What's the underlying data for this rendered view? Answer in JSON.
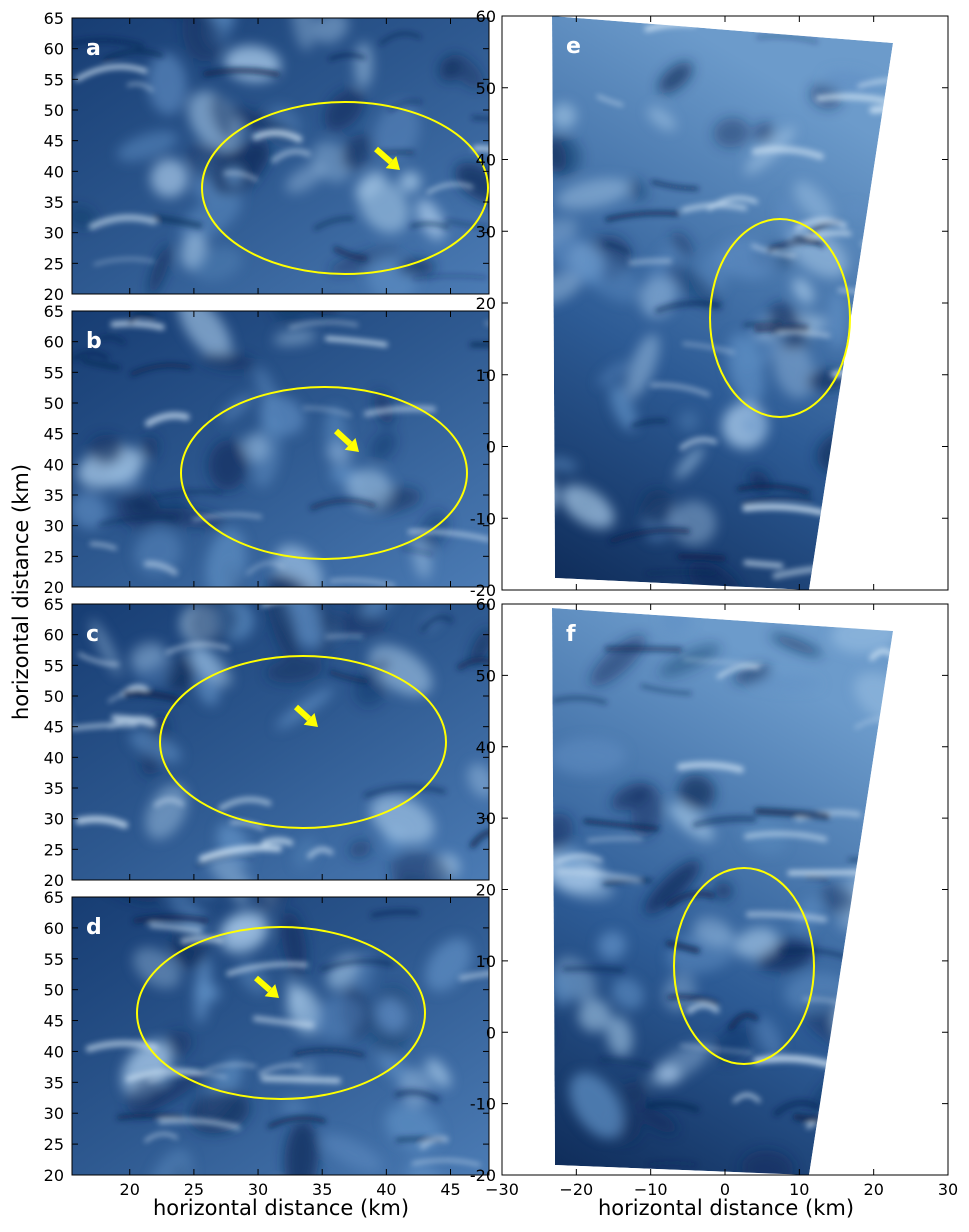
{
  "figure": {
    "panels_left": [
      {
        "letter": "a",
        "arrow": true
      },
      {
        "letter": "b",
        "arrow": true
      },
      {
        "letter": "c",
        "arrow": true
      },
      {
        "letter": "d",
        "arrow": true
      }
    ],
    "panels_right": [
      {
        "letter": "e"
      },
      {
        "letter": "f"
      }
    ],
    "left_axes": {
      "y_ticks": [
        "20",
        "25",
        "30",
        "35",
        "40",
        "45",
        "50",
        "55",
        "60",
        "65"
      ],
      "x_ticks": [
        "20",
        "25",
        "30",
        "35",
        "40",
        "45"
      ],
      "ylabel": "horizontal distance (km)",
      "xlabel": "horizontal distance (km)"
    },
    "right_axes": {
      "y_ticks": [
        "-20",
        "-10",
        "0",
        "10",
        "20",
        "30",
        "40",
        "50",
        "60"
      ],
      "x_ticks": [
        "−30",
        "−20",
        "−10",
        "0",
        "10",
        "20",
        "30"
      ],
      "xlabel": "horizontal distance (km)"
    },
    "colors": {
      "cloud_dark": "#0d2a55",
      "cloud_mid": "#3e6aa3",
      "cloud_light": "#c4dcf0",
      "annotation": "#ffff00",
      "panel_letter": "#ffffff"
    }
  }
}
